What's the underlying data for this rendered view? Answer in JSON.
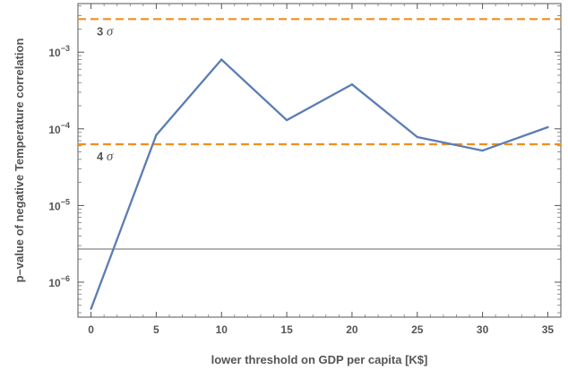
{
  "chart_data": {
    "type": "line",
    "xlabel": "lower threshold on GDP per capita [K$]",
    "ylabel": "p–value of negative Temperature correlation",
    "xlim": [
      -1,
      36
    ],
    "ylim": [
      3.5e-07,
      0.0043
    ],
    "y_scale": "log",
    "x_ticks": [
      0,
      5,
      10,
      15,
      20,
      25,
      30,
      35
    ],
    "y_ticks": [
      {
        "value": 1e-06,
        "base": "10",
        "exp": "−6"
      },
      {
        "value": 1e-05,
        "base": "10",
        "exp": "−5"
      },
      {
        "value": 0.0001,
        "base": "10",
        "exp": "−4"
      },
      {
        "value": 0.001,
        "base": "10",
        "exp": "−3"
      }
    ],
    "series": [
      {
        "x": [
          0,
          5,
          10,
          15,
          20,
          25,
          30,
          35
        ],
        "y": [
          4.5e-07,
          8.3e-05,
          0.0008,
          0.00013,
          0.00038,
          7.8e-05,
          5.2e-05,
          0.000105
        ],
        "color": "#5b7db3"
      }
    ],
    "reference_lines": [
      {
        "label": "3 σ",
        "value": 0.0027,
        "style": "dashed",
        "color": "#f28e1c"
      },
      {
        "label": "4 σ",
        "value": 6.3e-05,
        "style": "dashed",
        "color": "#f28e1c"
      },
      {
        "label": "",
        "value": 2.7e-06,
        "style": "solid",
        "color": "#666666"
      }
    ],
    "grid": false
  }
}
